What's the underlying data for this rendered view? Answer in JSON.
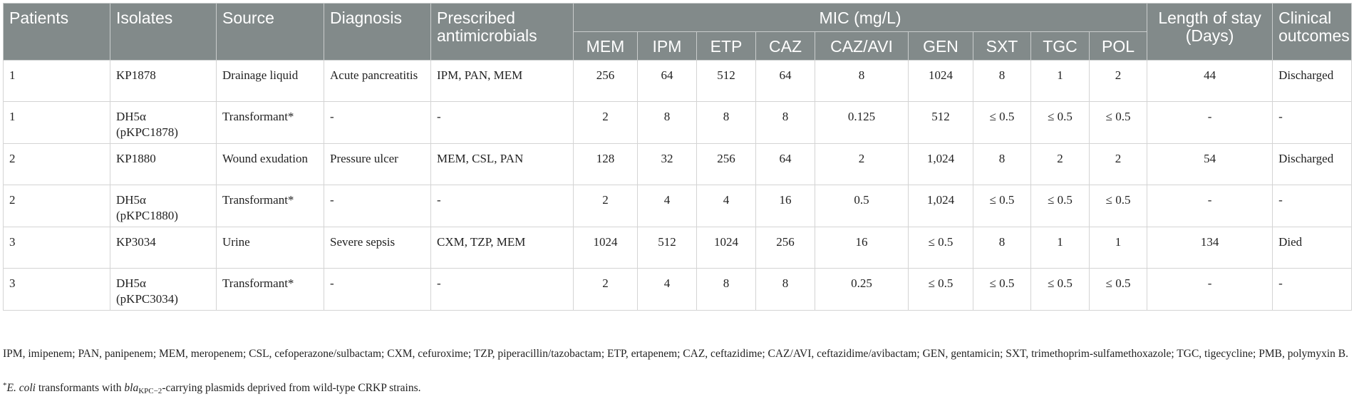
{
  "table": {
    "headers": {
      "patients": "Patients",
      "isolates": "Isolates",
      "source": "Source",
      "diagnosis": "Diagnosis",
      "prescribed": "Prescribed antimicrobials",
      "mic_group": "MIC (mg/L)",
      "mic_columns": [
        "MEM",
        "IPM",
        "ETP",
        "CAZ",
        "CAZ/AVI",
        "GEN",
        "SXT",
        "TGC",
        "POL"
      ],
      "length_of_stay": "Length of stay (Days)",
      "clinical_outcomes": "Clinical outcomes"
    },
    "rows": [
      {
        "patient": "1",
        "isolate": "KP1878",
        "source": "Drainage liquid",
        "diagnosis": "Acute pancreatitis",
        "antimicrobials": "IPM, PAN, MEM",
        "mic": [
          "256",
          "64",
          "512",
          "64",
          "8",
          "1024",
          "8",
          "1",
          "2"
        ],
        "stay": "44",
        "outcome": "Discharged"
      },
      {
        "patient": "1",
        "isolate": "DH5α (pKPC1878)",
        "source": "Transformant*",
        "diagnosis": "-",
        "antimicrobials": "-",
        "mic": [
          "2",
          "8",
          "8",
          "8",
          "0.125",
          "512",
          "≤ 0.5",
          "≤ 0.5",
          "≤ 0.5"
        ],
        "stay": "-",
        "outcome": "-"
      },
      {
        "patient": "2",
        "isolate": "KP1880",
        "source": "Wound exudation",
        "diagnosis": "Pressure ulcer",
        "antimicrobials": "MEM, CSL, PAN",
        "mic": [
          "128",
          "32",
          "256",
          "64",
          "2",
          "1,024",
          "8",
          "2",
          "2"
        ],
        "stay": "54",
        "outcome": "Discharged"
      },
      {
        "patient": "2",
        "isolate": "DH5α (pKPC1880)",
        "source": "Transformant*",
        "diagnosis": "-",
        "antimicrobials": "-",
        "mic": [
          "2",
          "4",
          "4",
          "16",
          "0.5",
          "1,024",
          "≤ 0.5",
          "≤ 0.5",
          "≤ 0.5"
        ],
        "stay": "-",
        "outcome": "-"
      },
      {
        "patient": "3",
        "isolate": "KP3034",
        "source": "Urine",
        "diagnosis": "Severe sepsis",
        "antimicrobials": "CXM, TZP, MEM",
        "mic": [
          "1024",
          "512",
          "1024",
          "256",
          "16",
          "≤ 0.5",
          "8",
          "1",
          "1"
        ],
        "stay": "134",
        "outcome": "Died"
      },
      {
        "patient": "3",
        "isolate": "DH5α (pKPC3034)",
        "source": "Transformant*",
        "diagnosis": "-",
        "antimicrobials": "-",
        "mic": [
          "2",
          "4",
          "8",
          "8",
          "0.25",
          "≤ 0.5",
          "≤ 0.5",
          "≤ 0.5",
          "≤ 0.5"
        ],
        "stay": "-",
        "outcome": "-"
      }
    ]
  },
  "footnotes": {
    "abbreviations": "IPM, imipenem; PAN, panipenem; MEM, meropenem; CSL, cefoperazone/sulbactam; CXM, cefuroxime; TZP, piperacillin/tazobactam; ETP, ertapenem; CAZ, ceftazidime; CAZ/AVI, ceftazidime/avibactam; GEN, gentamicin; SXT, trimethoprim-sulfamethoxazole; TGC, tigecycline; PMB, polymyxin B.",
    "transformant_star": "*",
    "transformant_species": "E. coli",
    "transformant_mid": " transformants with ",
    "transformant_gene": "bla",
    "transformant_gene_sub": "KPC−2",
    "transformant_end": "-carrying plasmids deprived from wild-type CRKP strains."
  }
}
